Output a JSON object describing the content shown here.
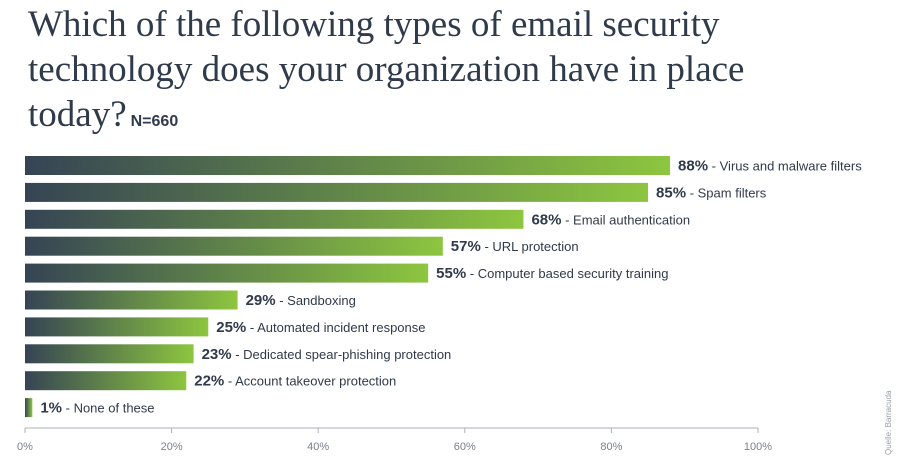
{
  "chart_data": {
    "type": "bar",
    "orientation": "horizontal",
    "title": "Which of the following types of email security technology does your organization have in place today?",
    "subtitle": "N=660",
    "categories": [
      "Virus and malware filters",
      "Spam filters",
      "Email authentication",
      "URL protection",
      "Computer based security training",
      "Sandboxing",
      "Automated incident response",
      "Dedicated spear-phishing protection",
      "Account takeover protection",
      "None of these"
    ],
    "values": [
      88,
      85,
      68,
      57,
      55,
      29,
      25,
      23,
      22,
      1
    ],
    "value_labels": [
      "88%",
      "85%",
      "68%",
      "57%",
      "55%",
      "29%",
      "25%",
      "23%",
      "22%",
      "1%"
    ],
    "label_separator": "- ",
    "xlim": [
      0,
      100
    ],
    "x_ticks": [
      "0%",
      "20%",
      "40%",
      "60%",
      "80%",
      "100%"
    ],
    "grid": false,
    "source": "Quelle: Barracuda",
    "colors": {
      "bar_start": "#354454",
      "bar_end": "#8dc63f",
      "text": "#2f3a4a",
      "axis": "#aab0b8"
    }
  }
}
